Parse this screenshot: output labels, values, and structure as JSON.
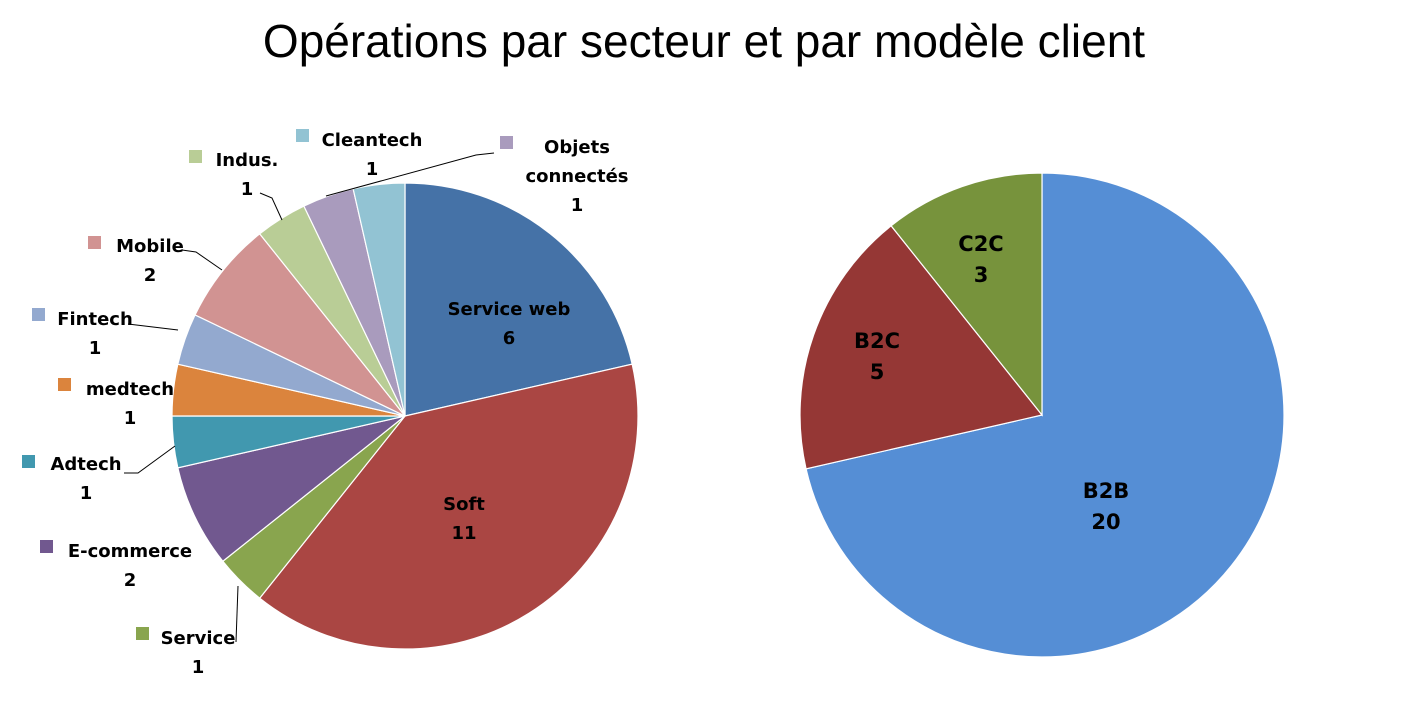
{
  "title": "Opérations par secteur et par modèle client",
  "chart_data": [
    {
      "type": "pie",
      "slices": [
        {
          "name": "Service web",
          "value": 6,
          "color": "#4572A7"
        },
        {
          "name": "Soft",
          "value": 11,
          "color": "#AA4643"
        },
        {
          "name": "Service",
          "value": 1,
          "color": "#89A54E"
        },
        {
          "name": "E-commerce",
          "value": 2,
          "color": "#71588F"
        },
        {
          "name": "Adtech",
          "value": 1,
          "color": "#4198AF"
        },
        {
          "name": "medtech",
          "value": 1,
          "color": "#DB843D"
        },
        {
          "name": "Fintech",
          "value": 1,
          "color": "#93A9CF"
        },
        {
          "name": "Mobile",
          "value": 2,
          "color": "#D19392"
        },
        {
          "name": "Indus.",
          "value": 1,
          "color": "#B9CD96"
        },
        {
          "name": "Objets connectés",
          "value": 1,
          "color": "#A99BBD"
        },
        {
          "name": "Cleantech",
          "value": 1,
          "color": "#92C3D3"
        }
      ]
    },
    {
      "type": "pie",
      "slices": [
        {
          "name": "B2B",
          "value": 20,
          "color": "#558ED5"
        },
        {
          "name": "B2C",
          "value": 5,
          "color": "#953735"
        },
        {
          "name": "C2C",
          "value": 3,
          "color": "#77933C"
        }
      ]
    }
  ]
}
